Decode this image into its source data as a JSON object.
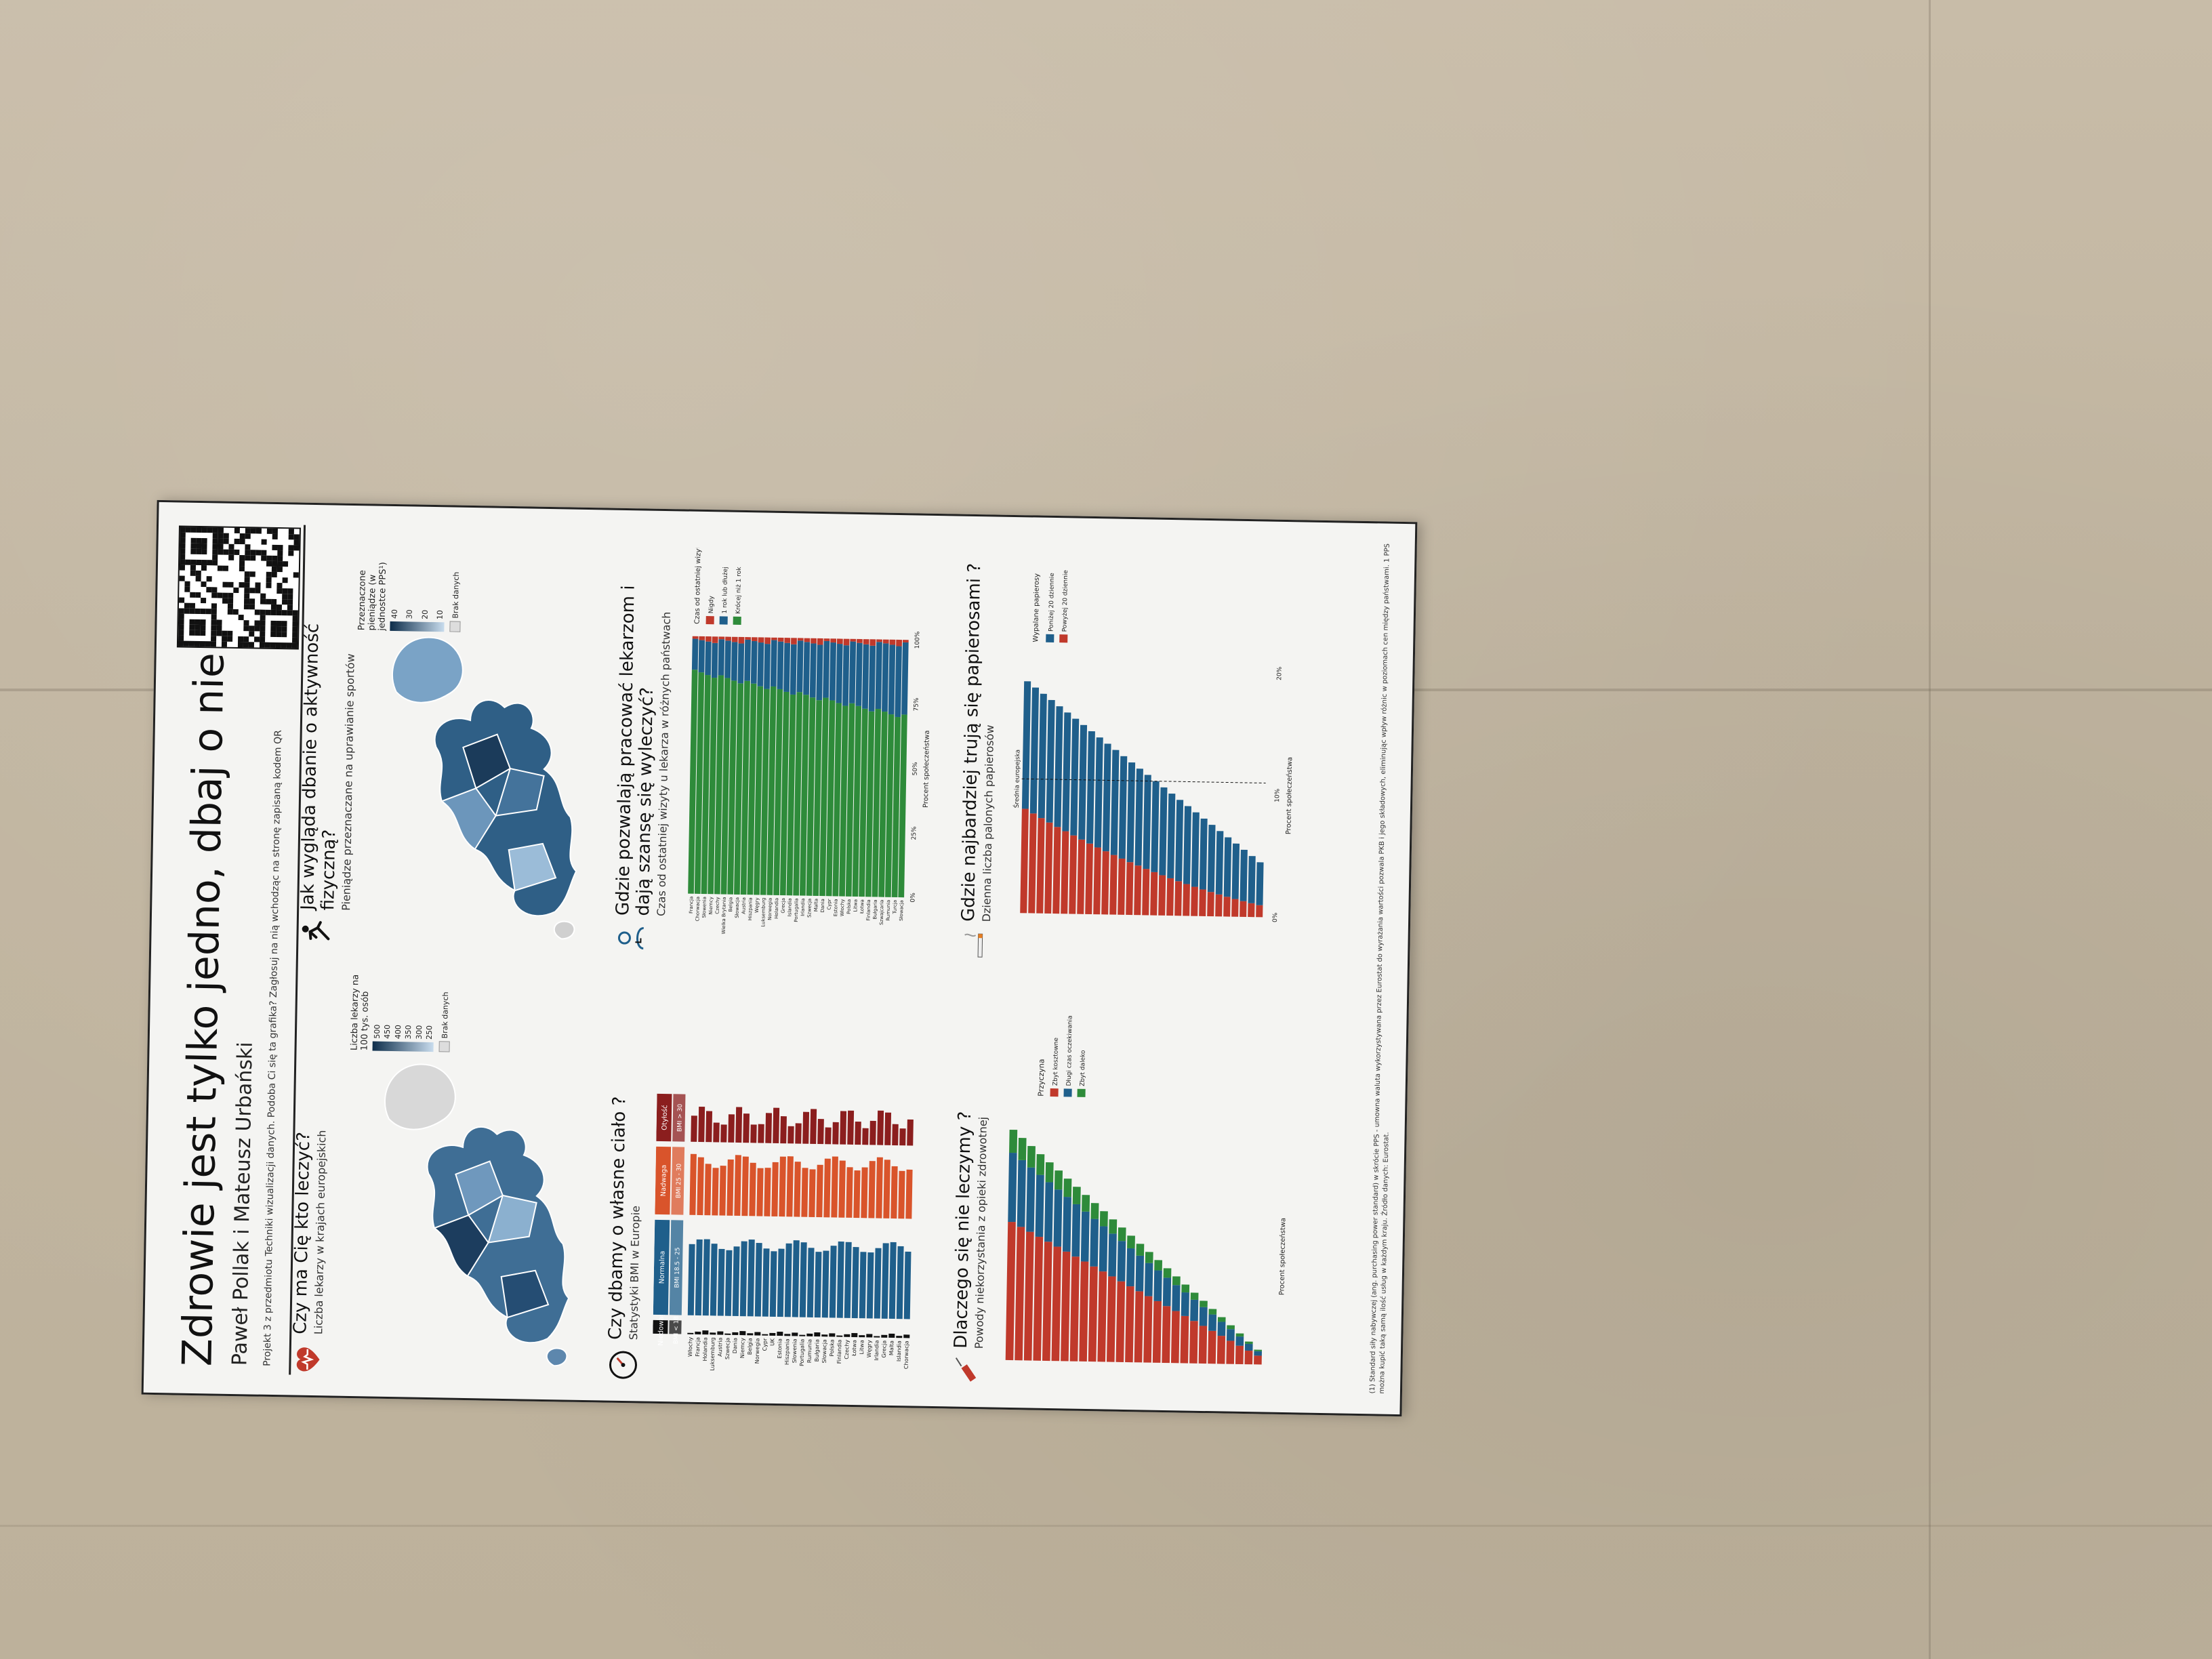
{
  "poster": {
    "title": "Zdrowie jest tylko jedno, dbaj o nie!",
    "authors": "Paweł Pollak i Mateusz Urbański",
    "note": "Projekt 3 z przedmiotu Techniki wizualizacji danych. Podoba Ci się ta grafika? Zagłosuj na nią wchodząc na stronę zapisaną kodem QR"
  },
  "panels": {
    "doctors": {
      "title": "Czy ma Cię kto leczyć?",
      "subtitle": "Liczba lekarzy w krajach europejskich",
      "legend_title": "Liczba lekarzy na 100 tys. osób",
      "legend_ticks": [
        "500",
        "450",
        "400",
        "350",
        "300",
        "250"
      ],
      "no_data": "Brak danych"
    },
    "sport": {
      "title": "Jak wygląda dbanie o aktywność fizyczną?",
      "subtitle": "Pieniądze przeznaczane na uprawianie sportów",
      "legend_title": "Przeznaczone pieniądze (w jednostce PPS¹)",
      "legend_ticks": [
        "40",
        "30",
        "20",
        "10"
      ],
      "no_data": "Brak danych"
    },
    "bmi": {
      "title": "Czy dbamy o własne ciało ?",
      "subtitle": "Statystyki BMI w Europie",
      "categories": [
        "Niedowaga",
        "Normalna",
        "Nadwaga",
        "Otyłość"
      ],
      "ranges": [
        "BMI < 18.5",
        "BMI 18.5 - 25",
        "BMI 25 - 30",
        "BMI > 30"
      ],
      "countries": [
        "Włochy",
        "Francja",
        "Holandia",
        "Luksemburg",
        "Austria",
        "Szwecja",
        "Dania",
        "Niemcy",
        "Belgia",
        "Norwegia",
        "Cypr",
        "UK",
        "Estonia",
        "Hiszpania",
        "Słowenia",
        "Portugalia",
        "Rumunia",
        "Bułgaria",
        "Słowacja",
        "Polska",
        "Finlandia",
        "Czechy",
        "Łotwa",
        "Litwa",
        "Węgry",
        "Irlandia",
        "Grecja",
        "Malta",
        "Islandia",
        "Chorwacja"
      ]
    },
    "visits": {
      "title": "Gdzie pozwalają pracować lekarzom i dają szansę się wyleczyć?",
      "subtitle": "Czas od ostatniej wizyty u lekarza w różnych państwach",
      "legend_title": "Czas od ostatniej wizyty",
      "legend": [
        "Nigdy",
        "1 rok lub dłużej",
        "Krócej niż 1 rok"
      ],
      "axis_label": "Procent społeczeństwa",
      "ticks": [
        "0%",
        "25%",
        "50%",
        "75%",
        "100%"
      ],
      "countries": [
        "Francja",
        "Chorwacja",
        "Słowenia",
        "Niemcy",
        "Czechy",
        "Wielka Brytania",
        "Belgia",
        "Słowacja",
        "Austria",
        "Hiszpania",
        "Węgry",
        "Luksemburg",
        "Norwegia",
        "Holandia",
        "Grecja",
        "Islandia",
        "Portugalia",
        "Irlandia",
        "Szwecja",
        "Malta",
        "Dania",
        "Cypr",
        "Estonia",
        "Włochy",
        "Polska",
        "Litwa",
        "Łotwa",
        "Finlandia",
        "Bułgaria",
        "Szwajcaria",
        "Rumunia",
        "Turcja",
        "Słowacja"
      ]
    },
    "unmet": {
      "title": "Dlaczego się nie leczymy ?",
      "subtitle": "Powody niekorzystania z opieki zdrowotnej",
      "legend_title": "Przyczyna",
      "legend": [
        "Zbyt kosztowne",
        "Długi czas oczekiwania",
        "Zbyt daleko"
      ],
      "axis_label": "Procent społeczeństwa"
    },
    "smoking": {
      "title": "Gdzie najbardziej trują się papierosami ?",
      "subtitle": "Dzienna liczba palonych papierosów",
      "legend_title": "Wypalane papierosy",
      "legend": [
        "Poniżej 20 dziennie",
        "Powyżej 20 dziennie"
      ],
      "axis_label": "Procent społeczeństwa",
      "ticks": [
        "0%",
        "10%",
        "20%"
      ],
      "avg_label": "Średnia europejska"
    }
  },
  "footnote": "(1) Standard siły nabywczej (ang. purchasing power standard) w skrócie PPS - umowna waluta wykorzystywana przez Eurostat do wyrażania wartości pozwala PKB i jego składowych, eliminując wpływ różnic w poziomach cen między państwami. 1 PPS można kupić taką samą ilość usług w każdym kraju. Źródło danych: Eurostat.",
  "colors": {
    "blue": "#1f5f8b",
    "red": "#c0392b",
    "green": "#2e8b3a",
    "dark": "#8b1e1e"
  }
}
